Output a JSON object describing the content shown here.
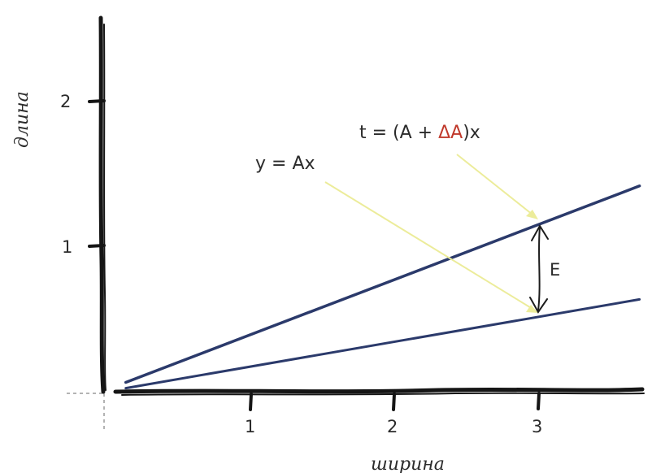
{
  "axes": {
    "y_label": "длина",
    "x_label": "ширина",
    "x_ticks": [
      "1",
      "2",
      "3"
    ],
    "y_ticks": [
      "1",
      "2"
    ]
  },
  "equations": {
    "upper_prefix": "t = (A + ",
    "upper_delta": "ΔA",
    "upper_suffix": ")x",
    "lower": "y = Ax"
  },
  "error_label": "E",
  "colors": {
    "line": "#2b3a6b",
    "axis": "#151515",
    "pointer": "#ecec9a",
    "delta": "#c0392b",
    "text": "#2b2b2b"
  },
  "chart_data": {
    "type": "line",
    "xlabel": "ширина",
    "ylabel": "длина",
    "xlim": [
      0,
      3.7
    ],
    "ylim": [
      0,
      2.5
    ],
    "series": [
      {
        "name": "t = (A + ΔA)x",
        "x": [
          0.15,
          3.7
        ],
        "y": [
          0.07,
          1.42
        ]
      },
      {
        "name": "y = Ax",
        "x": [
          0.15,
          3.7
        ],
        "y": [
          0.03,
          0.64
        ]
      }
    ]
  }
}
